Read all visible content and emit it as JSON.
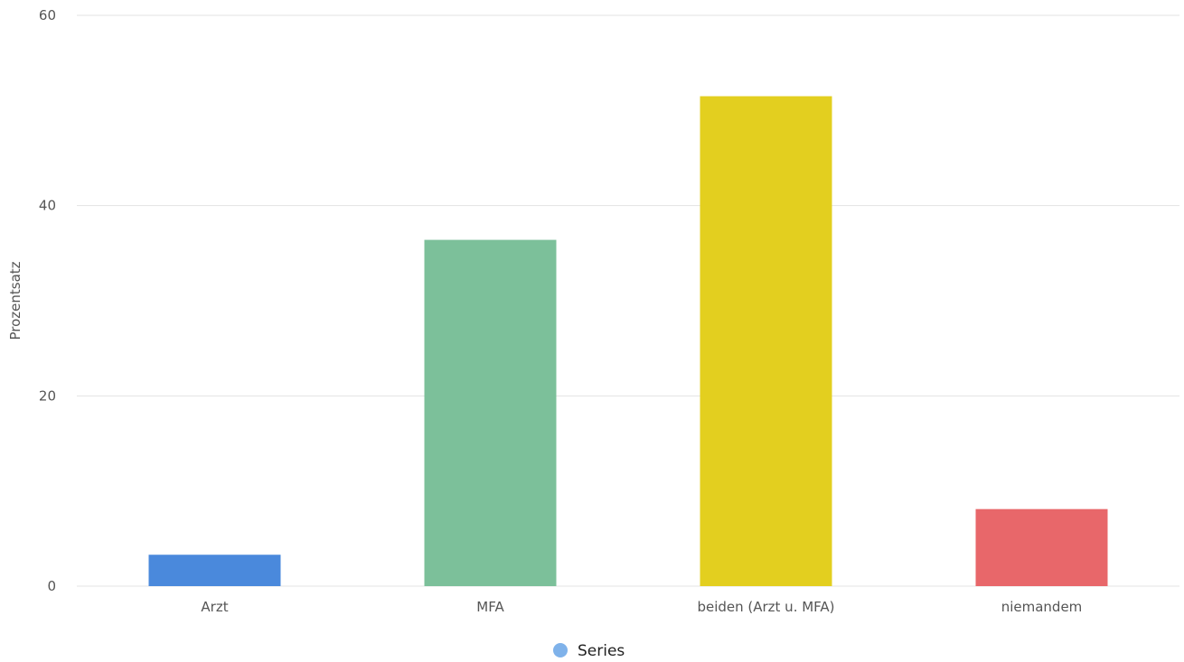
{
  "chart_data": {
    "type": "bar",
    "categories": [
      "Arzt",
      "MFA",
      "beiden (Arzt u. MFA)",
      "niemandem"
    ],
    "series": [
      {
        "name": "Series",
        "values": [
          3.3,
          36.4,
          51.5,
          8.1
        ],
        "colors": [
          "#4a89dc",
          "#7cc09a",
          "#e3cf1f",
          "#e8676a"
        ]
      }
    ],
    "title": "",
    "xlabel": "",
    "ylabel": "Prozentsatz",
    "ylim": [
      0,
      60
    ],
    "yticks": [
      0,
      20,
      40,
      60
    ],
    "grid": true,
    "legend_position": "bottom-center",
    "legend_marker_color": "#7fb2ea"
  }
}
